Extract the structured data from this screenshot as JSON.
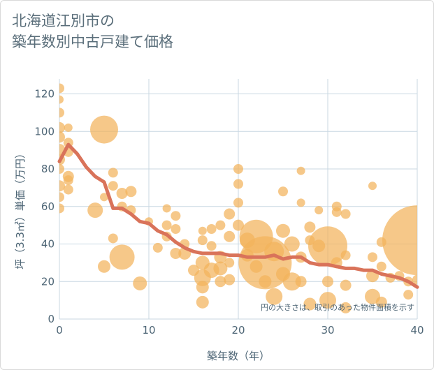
{
  "title_lines": [
    "北海道江別市の",
    "築年数別中古戸建て価格"
  ],
  "chart_data": {
    "type": "scatter",
    "title": "北海道江別市の築年数別中古戸建て価格",
    "xlabel": "築年数（年）",
    "ylabel": "坪（3.3㎡）単価（万円）",
    "xlim": [
      0,
      40
    ],
    "ylim": [
      0,
      128
    ],
    "xticks": [
      0,
      10,
      20,
      30,
      40
    ],
    "yticks": [
      0,
      20,
      40,
      60,
      80,
      100,
      120
    ],
    "grid": true,
    "annotation": "円の大きさは、取引のあった物件面積を示す",
    "colors": {
      "bubble": "#f2b35c",
      "line": "#d9735a",
      "axis_text": "#4d6575",
      "grid": "#c8d7e2"
    },
    "bubbles": [
      {
        "x": 0,
        "y": 123,
        "s": 7
      },
      {
        "x": 0,
        "y": 117,
        "s": 6
      },
      {
        "x": 0,
        "y": 110,
        "s": 7
      },
      {
        "x": 0,
        "y": 102,
        "s": 8
      },
      {
        "x": 0,
        "y": 97,
        "s": 8
      },
      {
        "x": 0,
        "y": 90,
        "s": 9
      },
      {
        "x": 0,
        "y": 85,
        "s": 8
      },
      {
        "x": 0,
        "y": 80,
        "s": 7
      },
      {
        "x": 0,
        "y": 71,
        "s": 8
      },
      {
        "x": 0,
        "y": 65,
        "s": 7
      },
      {
        "x": 0,
        "y": 59,
        "s": 7
      },
      {
        "x": 1,
        "y": 102,
        "s": 6
      },
      {
        "x": 1,
        "y": 94,
        "s": 7
      },
      {
        "x": 1,
        "y": 89,
        "s": 7
      },
      {
        "x": 1,
        "y": 76,
        "s": 8
      },
      {
        "x": 1,
        "y": 74,
        "s": 7
      },
      {
        "x": 1,
        "y": 69,
        "s": 7
      },
      {
        "x": 4,
        "y": 58,
        "s": 11
      },
      {
        "x": 5,
        "y": 101,
        "s": 20
      },
      {
        "x": 5,
        "y": 65,
        "s": 6
      },
      {
        "x": 5,
        "y": 28,
        "s": 9
      },
      {
        "x": 6,
        "y": 78,
        "s": 7
      },
      {
        "x": 6,
        "y": 71,
        "s": 7
      },
      {
        "x": 6,
        "y": 43,
        "s": 7
      },
      {
        "x": 7,
        "y": 67,
        "s": 8
      },
      {
        "x": 7,
        "y": 60,
        "s": 7
      },
      {
        "x": 7,
        "y": 33,
        "s": 18
      },
      {
        "x": 8,
        "y": 68,
        "s": 8
      },
      {
        "x": 8,
        "y": 58,
        "s": 7
      },
      {
        "x": 9,
        "y": 19,
        "s": 10
      },
      {
        "x": 10,
        "y": 52,
        "s": 6
      },
      {
        "x": 11,
        "y": 38,
        "s": 7
      },
      {
        "x": 12,
        "y": 59,
        "s": 6
      },
      {
        "x": 12,
        "y": 50,
        "s": 7
      },
      {
        "x": 12,
        "y": 44,
        "s": 7
      },
      {
        "x": 13,
        "y": 55,
        "s": 7
      },
      {
        "x": 13,
        "y": 48,
        "s": 7
      },
      {
        "x": 13,
        "y": 35,
        "s": 8
      },
      {
        "x": 14,
        "y": 40,
        "s": 7
      },
      {
        "x": 14,
        "y": 35,
        "s": 9
      },
      {
        "x": 15,
        "y": 26,
        "s": 8
      },
      {
        "x": 16,
        "y": 47,
        "s": 6
      },
      {
        "x": 16,
        "y": 42,
        "s": 7
      },
      {
        "x": 16,
        "y": 30,
        "s": 10
      },
      {
        "x": 16,
        "y": 22,
        "s": 12
      },
      {
        "x": 16,
        "y": 17,
        "s": 9
      },
      {
        "x": 16,
        "y": 9,
        "s": 9
      },
      {
        "x": 17,
        "y": 48,
        "s": 7
      },
      {
        "x": 17,
        "y": 39,
        "s": 7
      },
      {
        "x": 17,
        "y": 26,
        "s": 11
      },
      {
        "x": 18,
        "y": 50,
        "s": 7
      },
      {
        "x": 18,
        "y": 33,
        "s": 9
      },
      {
        "x": 18,
        "y": 27,
        "s": 10
      },
      {
        "x": 18,
        "y": 20,
        "s": 8
      },
      {
        "x": 19,
        "y": 56,
        "s": 8
      },
      {
        "x": 19,
        "y": 44,
        "s": 8
      },
      {
        "x": 19,
        "y": 30,
        "s": 7
      },
      {
        "x": 19,
        "y": 21,
        "s": 8
      },
      {
        "x": 20,
        "y": 80,
        "s": 7
      },
      {
        "x": 20,
        "y": 72,
        "s": 7
      },
      {
        "x": 20,
        "y": 62,
        "s": 7
      },
      {
        "x": 20,
        "y": 50,
        "s": 8
      },
      {
        "x": 21,
        "y": 42,
        "s": 11
      },
      {
        "x": 21,
        "y": 34,
        "s": 9
      },
      {
        "x": 22,
        "y": 44,
        "s": 24
      },
      {
        "x": 22,
        "y": 28,
        "s": 9
      },
      {
        "x": 23,
        "y": 30,
        "s": 38
      },
      {
        "x": 23,
        "y": 20,
        "s": 9
      },
      {
        "x": 24,
        "y": 36,
        "s": 14
      },
      {
        "x": 24,
        "y": 12,
        "s": 12
      },
      {
        "x": 25,
        "y": 68,
        "s": 7
      },
      {
        "x": 25,
        "y": 47,
        "s": 10
      },
      {
        "x": 25,
        "y": 24,
        "s": 10
      },
      {
        "x": 26,
        "y": 40,
        "s": 11
      },
      {
        "x": 26,
        "y": 20,
        "s": 13
      },
      {
        "x": 27,
        "y": 79,
        "s": 6
      },
      {
        "x": 27,
        "y": 62,
        "s": 6
      },
      {
        "x": 27,
        "y": 33,
        "s": 8
      },
      {
        "x": 27,
        "y": 20,
        "s": 8
      },
      {
        "x": 28,
        "y": 49,
        "s": 8
      },
      {
        "x": 28,
        "y": 42,
        "s": 7
      },
      {
        "x": 28,
        "y": 8,
        "s": 9
      },
      {
        "x": 29,
        "y": 58,
        "s": 6
      },
      {
        "x": 29,
        "y": 39,
        "s": 9
      },
      {
        "x": 30,
        "y": 39,
        "s": 28
      },
      {
        "x": 30,
        "y": 20,
        "s": 8
      },
      {
        "x": 30,
        "y": 10,
        "s": 12
      },
      {
        "x": 31,
        "y": 60,
        "s": 7
      },
      {
        "x": 31,
        "y": 57,
        "s": 7
      },
      {
        "x": 31,
        "y": 30,
        "s": 8
      },
      {
        "x": 32,
        "y": 56,
        "s": 7
      },
      {
        "x": 32,
        "y": 34,
        "s": 7
      },
      {
        "x": 32,
        "y": 18,
        "s": 8
      },
      {
        "x": 32,
        "y": 6,
        "s": 8
      },
      {
        "x": 35,
        "y": 71,
        "s": 6
      },
      {
        "x": 35,
        "y": 33,
        "s": 7
      },
      {
        "x": 35,
        "y": 23,
        "s": 9
      },
      {
        "x": 35,
        "y": 12,
        "s": 11
      },
      {
        "x": 36,
        "y": 28,
        "s": 7
      },
      {
        "x": 36,
        "y": 41,
        "s": 7
      },
      {
        "x": 36,
        "y": 9,
        "s": 8
      },
      {
        "x": 37,
        "y": 22,
        "s": 7
      },
      {
        "x": 38,
        "y": 23,
        "s": 7
      },
      {
        "x": 39,
        "y": 13,
        "s": 7
      },
      {
        "x": 39,
        "y": 20,
        "s": 7
      },
      {
        "x": 40,
        "y": 42,
        "s": 50
      },
      {
        "x": 40,
        "y": 21,
        "s": 7
      }
    ],
    "series": [
      {
        "x": [
          0,
          1,
          2,
          3,
          4,
          5,
          6,
          7,
          8,
          9,
          10,
          11,
          12,
          13,
          14,
          15,
          16,
          17,
          18,
          19,
          20,
          21,
          22,
          23,
          24,
          25,
          26,
          27,
          28,
          29,
          30,
          31,
          32,
          33,
          34,
          35,
          36,
          37,
          38,
          39,
          40
        ],
        "y": [
          84,
          93,
          88,
          81,
          76,
          73,
          59,
          59,
          56,
          52,
          51,
          47,
          45,
          41,
          38,
          36,
          35,
          35,
          35,
          34,
          34,
          33,
          33,
          33,
          34,
          32,
          33,
          33,
          30,
          29,
          29,
          28,
          27,
          27,
          26,
          26,
          24,
          23,
          22,
          20,
          17
        ]
      }
    ]
  }
}
